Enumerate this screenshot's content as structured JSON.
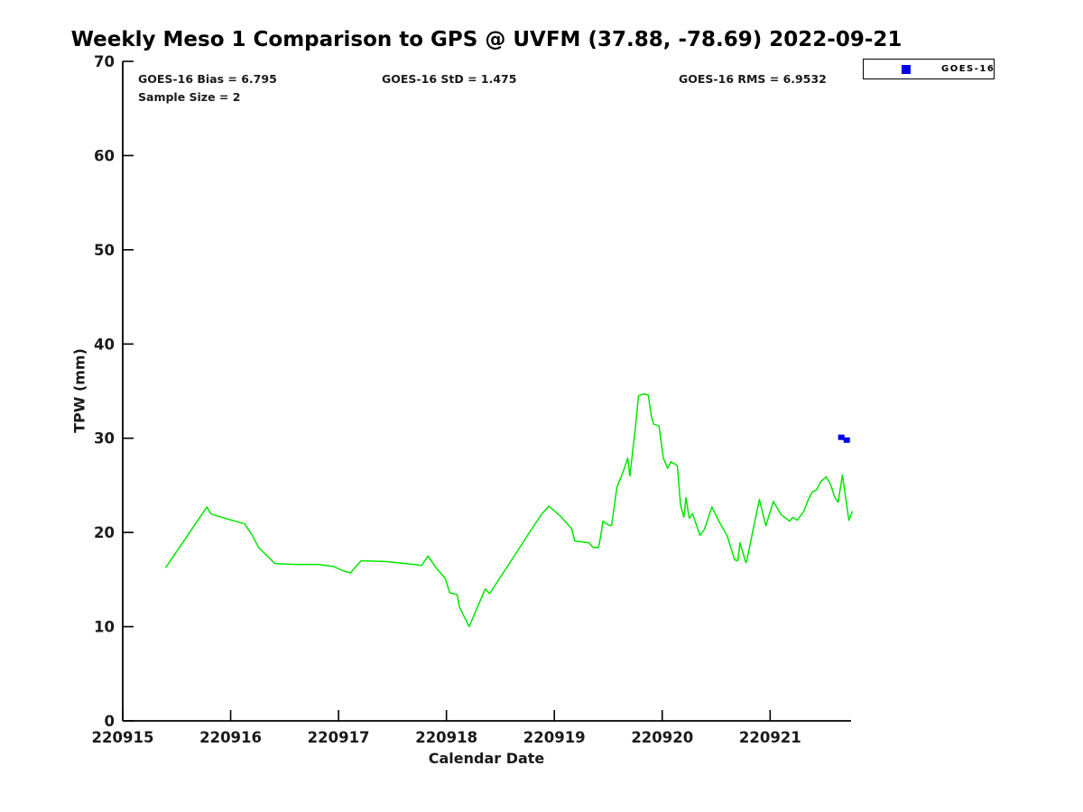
{
  "title": "Weekly Meso 1 Comparison to GPS @ UVFM (37.88, -78.69) 2022-09-21",
  "stats": {
    "bias": "GOES-16 Bias = 6.795",
    "std": "GOES-16 StD = 1.475",
    "rms": "GOES-16 RMS = 6.9532",
    "sample_size": "Sample Size = 2"
  },
  "legend": {
    "position": "top-right",
    "entries": [
      {
        "label": "GOES-16",
        "marker": "square",
        "color": "#0000ee"
      }
    ]
  },
  "axes": {
    "xlabel": "Calendar Date",
    "ylabel": "TPW (mm)",
    "x_tick_labels": [
      "220915",
      "220916",
      "220917",
      "220918",
      "220919",
      "220920",
      "220921"
    ],
    "y_tick_values": [
      0,
      10,
      20,
      30,
      40,
      50,
      60,
      70
    ],
    "ylim": [
      0,
      70
    ],
    "x_day_range": [
      0,
      6.75
    ],
    "grid": false
  },
  "chart_data": {
    "type": "line",
    "title": "Weekly Meso 1 Comparison to GPS @ UVFM (37.88, -78.69) 2022-09-21",
    "xlabel": "Calendar Date",
    "ylabel": "TPW (mm)",
    "ylim": [
      0,
      70
    ],
    "x_unit": "day offset from 220915 (YYMMDD calendar date axis)",
    "series": [
      {
        "name": "GPS TPW trace",
        "type": "line",
        "color": "#00e600",
        "x": [
          0.4,
          0.78,
          0.81,
          0.83,
          1.13,
          1.2,
          1.26,
          1.41,
          1.6,
          1.81,
          1.95,
          2.05,
          2.11,
          2.21,
          2.45,
          2.7,
          2.77,
          2.83,
          2.9,
          2.99,
          3.03,
          3.1,
          3.12,
          3.21,
          3.36,
          3.4,
          3.6,
          3.77,
          3.88,
          3.95,
          4.05,
          4.16,
          4.19,
          4.32,
          4.36,
          4.41,
          4.43,
          4.45,
          4.5,
          4.53,
          4.58,
          4.64,
          4.68,
          4.7,
          4.75,
          4.78,
          4.83,
          4.87,
          4.9,
          4.92,
          4.97,
          4.99,
          5.01,
          5.05,
          5.08,
          5.14,
          5.17,
          5.2,
          5.22,
          5.25,
          5.28,
          5.35,
          5.39,
          5.46,
          5.53,
          5.6,
          5.67,
          5.7,
          5.72,
          5.77,
          5.78,
          5.83,
          5.9,
          5.96,
          6.03,
          6.1,
          6.18,
          6.21,
          6.25,
          6.31,
          6.35,
          6.39,
          6.43,
          6.47,
          6.52,
          6.56,
          6.6,
          6.63,
          6.67,
          6.7,
          6.73,
          6.76
        ],
        "y": [
          16.3,
          22.7,
          22.1,
          21.9,
          20.9,
          19.7,
          18.4,
          16.7,
          16.6,
          16.6,
          16.4,
          15.9,
          15.7,
          17.0,
          16.9,
          16.6,
          16.5,
          17.5,
          16.3,
          15.1,
          13.6,
          13.4,
          12.1,
          10.0,
          14.0,
          13.5,
          17.0,
          20.0,
          21.9,
          22.8,
          21.8,
          20.4,
          19.1,
          18.9,
          18.4,
          18.4,
          19.6,
          21.2,
          20.8,
          20.7,
          24.8,
          26.5,
          27.9,
          26.0,
          31.0,
          34.5,
          34.7,
          34.6,
          32.3,
          31.5,
          31.3,
          29.6,
          27.9,
          26.8,
          27.5,
          27.1,
          22.9,
          21.6,
          23.7,
          21.5,
          22.0,
          19.7,
          20.3,
          22.7,
          21.1,
          19.7,
          17.1,
          17.0,
          18.9,
          17.0,
          16.8,
          19.6,
          23.5,
          20.7,
          23.3,
          21.9,
          21.2,
          21.6,
          21.3,
          22.2,
          23.4,
          24.3,
          24.5,
          25.4,
          25.9,
          25.1,
          23.7,
          23.2,
          26.1,
          23.7,
          21.3,
          22.2
        ]
      },
      {
        "name": "GOES-16",
        "type": "scatter",
        "marker": "square",
        "color": "#0000ee",
        "x": [
          6.66,
          6.71
        ],
        "y": [
          30.1,
          29.8
        ]
      }
    ],
    "legend": [
      "GOES-16"
    ],
    "annotations": [
      "GOES-16 Bias = 6.795",
      "GOES-16 StD = 1.475",
      "GOES-16 RMS = 6.9532",
      "Sample Size = 2"
    ]
  }
}
